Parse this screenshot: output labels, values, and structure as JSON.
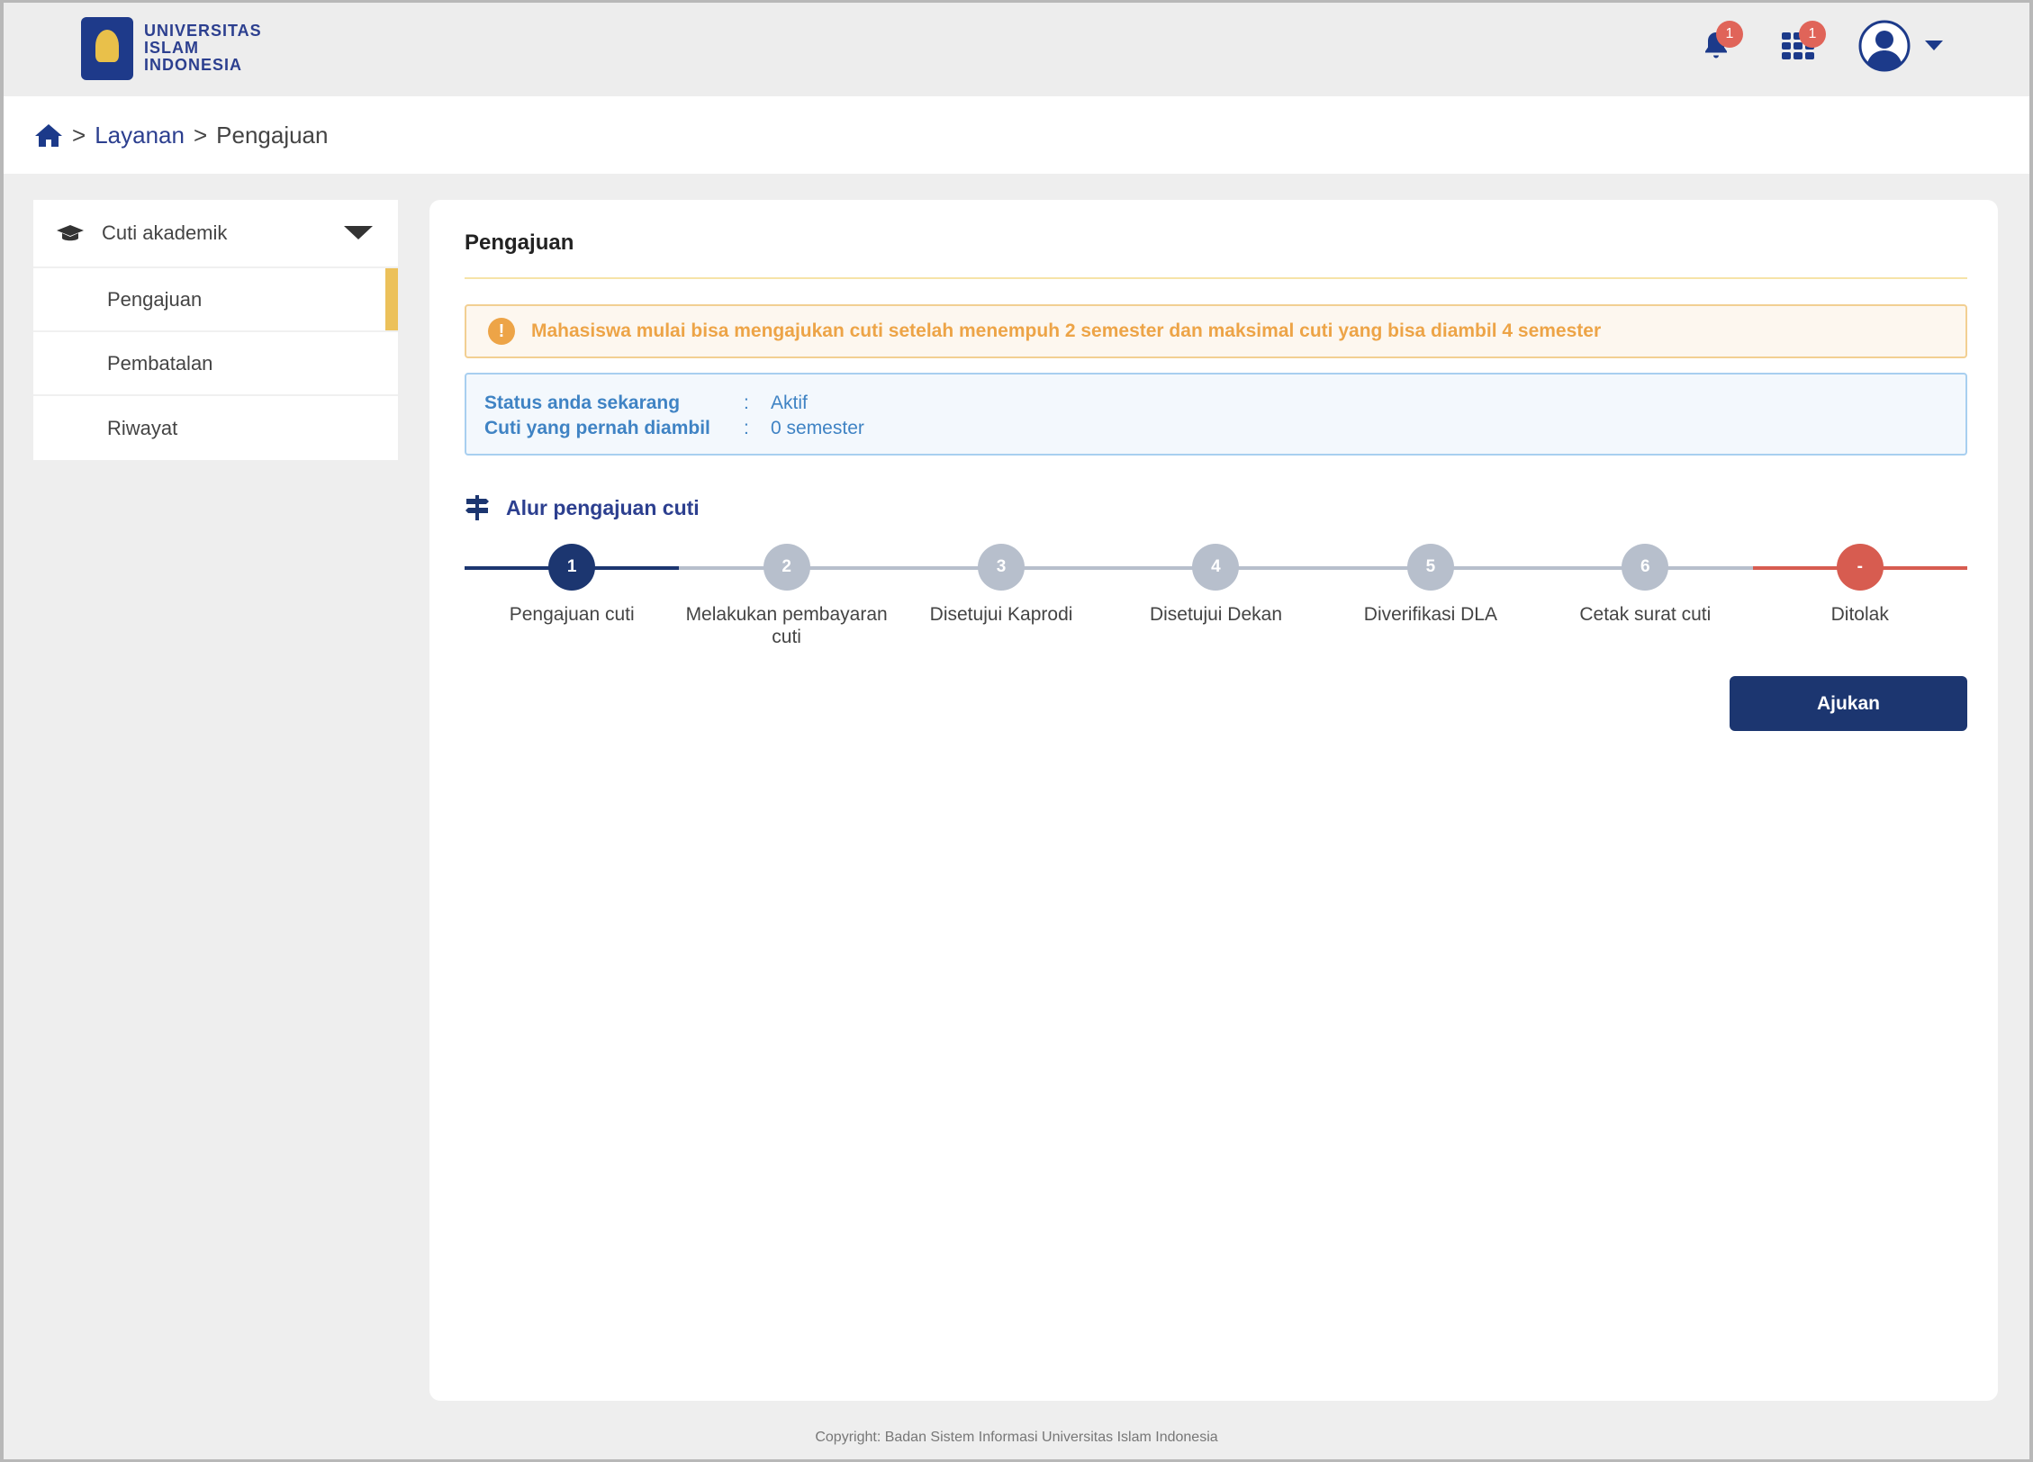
{
  "header": {
    "logo_lines": [
      "UNIVERSITAS",
      "ISLAM",
      "INDONESIA"
    ],
    "notifications_count": "1",
    "apps_count": "1",
    "accent": "#2c3f8f"
  },
  "breadcrumb": {
    "sep": ">",
    "items": [
      "Layanan",
      "Pengajuan"
    ]
  },
  "sidebar": {
    "group": "Cuti akademik",
    "items": [
      {
        "label": "Pengajuan",
        "active": true
      },
      {
        "label": "Pembatalan"
      },
      {
        "label": "Riwayat"
      }
    ]
  },
  "main": {
    "title": "Pengajuan",
    "warning": "Mahasiswa mulai bisa mengajukan cuti setelah menempuh 2 semester dan maksimal cuti yang bisa diambil 4 semester",
    "info": [
      {
        "label": "Status anda sekarang",
        "sep": ":",
        "value": "Aktif"
      },
      {
        "label": "Cuti yang pernah diambil",
        "sep": ":",
        "value": "0 semester"
      }
    ],
    "flow_title": "Alur pengajuan cuti",
    "steps": [
      {
        "num": "1",
        "label": "Pengajuan cuti",
        "state": "active"
      },
      {
        "num": "2",
        "label": "Melakukan pembayaran cuti",
        "state": "pending"
      },
      {
        "num": "3",
        "label": "Disetujui Kaprodi",
        "state": "pending"
      },
      {
        "num": "4",
        "label": "Disetujui Dekan",
        "state": "pending"
      },
      {
        "num": "5",
        "label": "Diverifikasi DLA",
        "state": "pending"
      },
      {
        "num": "6",
        "label": "Cetak surat cuti",
        "state": "pending"
      },
      {
        "num": "-",
        "label": "Ditolak",
        "state": "rejected"
      }
    ],
    "submit_label": "Ajukan"
  },
  "footer": "Copyright: Badan Sistem Informasi Universitas Islam Indonesia"
}
